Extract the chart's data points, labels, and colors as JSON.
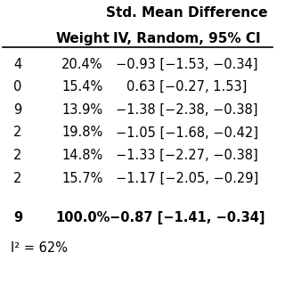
{
  "title_line1": "Std. Mean Difference",
  "title_line2": "IV, Random, 95% CI",
  "col1_header": "Weight",
  "rows": [
    {
      "weight": "20.4%",
      "ci": "−0.93 [−1.53, −0.34]"
    },
    {
      "weight": "15.4%",
      "ci": "0.63 [−0.27, 1.53]"
    },
    {
      "weight": "13.9%",
      "ci": "−1.38 [−2.38, −0.38]"
    },
    {
      "weight": "19.8%",
      "ci": "−1.05 [−1.68, −0.42]"
    },
    {
      "weight": "14.8%",
      "ci": "−1.33 [−2.27, −0.38]"
    },
    {
      "weight": "15.7%",
      "ci": "−1.17 [−2.05, −0.29]"
    }
  ],
  "total_weight": "100.0%",
  "total_ci": "−0.87 [−1.41, −0.34]",
  "footnote": "I² = 62%",
  "left_col_partial": [
    "4",
    "0",
    "9",
    "2",
    "2",
    "2"
  ],
  "total_left_partial": "9",
  "bg_color": "#ffffff",
  "text_color": "#000000",
  "fontsize_header": 11,
  "fontsize_body": 10.5,
  "fontsize_total": 10.5,
  "fontsize_footnote": 10.5
}
